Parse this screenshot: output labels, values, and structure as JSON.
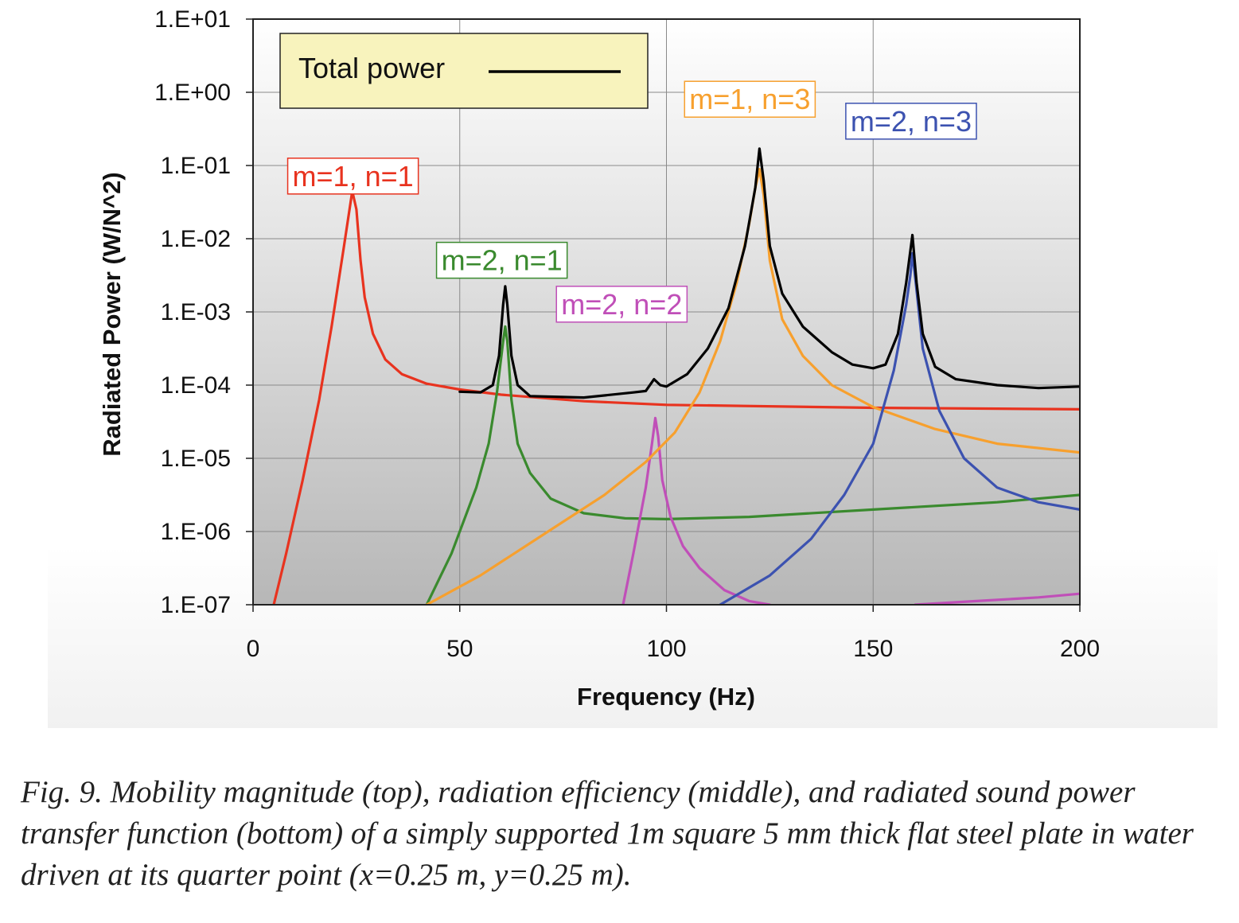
{
  "chart_data": {
    "type": "line",
    "title": "",
    "xlabel": "Frequency (Hz)",
    "ylabel": "Radiated Power (W/N^2)",
    "xlim": [
      0,
      200
    ],
    "ylim_log10": [
      -7,
      1
    ],
    "x_ticks": [
      0,
      50,
      100,
      150,
      200
    ],
    "x_tick_labels": [
      "0",
      "50",
      "100",
      "150",
      "200"
    ],
    "y_ticks_log10": [
      1,
      0,
      -1,
      -2,
      -3,
      -4,
      -5,
      -6,
      -7
    ],
    "y_tick_labels": [
      "1.E+01",
      "1.E+00",
      "1.E-01",
      "1.E-02",
      "1.E-03",
      "1.E-04",
      "1.E-05",
      "1.E-06",
      "1.E-07"
    ],
    "grid": true,
    "legend": {
      "position": "top-left",
      "entries": [
        {
          "label": "Total power",
          "color": "#000000"
        }
      ]
    },
    "series": [
      {
        "name": "m=1, n=1",
        "color": "#e8331f",
        "label_pos": {
          "x": 8,
          "y_log10": -1.15
        },
        "points": [
          [
            5,
            -7
          ],
          [
            8,
            -6.3
          ],
          [
            12,
            -5.3
          ],
          [
            16,
            -4.2
          ],
          [
            19,
            -3.2
          ],
          [
            22,
            -2.1
          ],
          [
            24,
            -1.35
          ],
          [
            25,
            -1.6
          ],
          [
            26,
            -2.3
          ],
          [
            27,
            -2.8
          ],
          [
            29,
            -3.3
          ],
          [
            32,
            -3.65
          ],
          [
            36,
            -3.85
          ],
          [
            42,
            -3.98
          ],
          [
            50,
            -4.06
          ],
          [
            60,
            -4.13
          ],
          [
            80,
            -4.22
          ],
          [
            100,
            -4.27
          ],
          [
            150,
            -4.31
          ],
          [
            200,
            -4.33
          ]
        ]
      },
      {
        "name": "m=2, n=1",
        "color": "#3a8a2e",
        "label_pos": {
          "x": 44,
          "y_log10": -2.3
        },
        "points": [
          [
            42,
            -7
          ],
          [
            48,
            -6.3
          ],
          [
            54,
            -5.4
          ],
          [
            57,
            -4.8
          ],
          [
            59,
            -4.1
          ],
          [
            60.5,
            -3.4
          ],
          [
            61,
            -3.2
          ],
          [
            61.5,
            -3.4
          ],
          [
            62.5,
            -4.2
          ],
          [
            64,
            -4.8
          ],
          [
            67,
            -5.2
          ],
          [
            72,
            -5.55
          ],
          [
            80,
            -5.75
          ],
          [
            90,
            -5.82
          ],
          [
            100,
            -5.83
          ],
          [
            120,
            -5.8
          ],
          [
            150,
            -5.7
          ],
          [
            180,
            -5.6
          ],
          [
            200,
            -5.5
          ]
        ]
      },
      {
        "name": "m=2, n=2",
        "color": "#c04fb8",
        "label_pos": {
          "x": 73,
          "y_log10": -2.9
        },
        "points": [
          [
            89.5,
            -7
          ],
          [
            92,
            -6.3
          ],
          [
            95,
            -5.4
          ],
          [
            96.5,
            -4.8
          ],
          [
            97.3,
            -4.45
          ],
          [
            98,
            -4.7
          ],
          [
            99,
            -5.3
          ],
          [
            101,
            -5.8
          ],
          [
            104,
            -6.2
          ],
          [
            108,
            -6.5
          ],
          [
            114,
            -6.8
          ],
          [
            120,
            -6.95
          ],
          [
            125,
            -7.0
          ]
        ],
        "extra_points": [
          [
            160,
            -7
          ],
          [
            175,
            -6.95
          ],
          [
            190,
            -6.9
          ],
          [
            200,
            -6.85
          ]
        ]
      },
      {
        "name": "m=1, n=3",
        "color": "#f7a02e",
        "label_pos": {
          "x": 104,
          "y_log10": -0.1
        },
        "points": [
          [
            42,
            -7
          ],
          [
            55,
            -6.6
          ],
          [
            70,
            -6.05
          ],
          [
            85,
            -5.5
          ],
          [
            95,
            -5.05
          ],
          [
            102,
            -4.65
          ],
          [
            108,
            -4.1
          ],
          [
            113,
            -3.4
          ],
          [
            117,
            -2.6
          ],
          [
            120,
            -1.8
          ],
          [
            121.5,
            -1.3
          ],
          [
            122.5,
            -1.05
          ],
          [
            123.5,
            -1.4
          ],
          [
            125,
            -2.3
          ],
          [
            128,
            -3.1
          ],
          [
            133,
            -3.6
          ],
          [
            140,
            -4.0
          ],
          [
            150,
            -4.3
          ],
          [
            165,
            -4.6
          ],
          [
            180,
            -4.8
          ],
          [
            200,
            -4.92
          ]
        ]
      },
      {
        "name": "m=2, n=3",
        "color": "#3c52b0",
        "label_pos": {
          "x": 143,
          "y_log10": -0.4
        },
        "points": [
          [
            113,
            -7
          ],
          [
            125,
            -6.6
          ],
          [
            135,
            -6.1
          ],
          [
            143,
            -5.5
          ],
          [
            150,
            -4.8
          ],
          [
            155,
            -3.8
          ],
          [
            158,
            -2.9
          ],
          [
            159,
            -2.5
          ],
          [
            159.5,
            -2.2
          ],
          [
            160.3,
            -2.6
          ],
          [
            162,
            -3.5
          ],
          [
            166,
            -4.35
          ],
          [
            172,
            -5.0
          ],
          [
            180,
            -5.4
          ],
          [
            190,
            -5.6
          ],
          [
            200,
            -5.7
          ]
        ]
      },
      {
        "name": "Total power",
        "color": "#000000",
        "points": [
          [
            50,
            -4.09
          ],
          [
            55,
            -4.1
          ],
          [
            58,
            -4.0
          ],
          [
            59.5,
            -3.6
          ],
          [
            60.5,
            -2.9
          ],
          [
            61,
            -2.65
          ],
          [
            61.5,
            -2.9
          ],
          [
            62.5,
            -3.6
          ],
          [
            64,
            -4.0
          ],
          [
            67,
            -4.15
          ],
          [
            80,
            -4.17
          ],
          [
            92,
            -4.1
          ],
          [
            95,
            -4.08
          ],
          [
            97,
            -3.92
          ],
          [
            98.5,
            -4.0
          ],
          [
            100,
            -4.02
          ],
          [
            105,
            -3.85
          ],
          [
            110,
            -3.5
          ],
          [
            115,
            -2.95
          ],
          [
            119,
            -2.1
          ],
          [
            121.5,
            -1.3
          ],
          [
            122.5,
            -0.77
          ],
          [
            123.5,
            -1.2
          ],
          [
            125,
            -2.1
          ],
          [
            128,
            -2.75
          ],
          [
            133,
            -3.2
          ],
          [
            140,
            -3.55
          ],
          [
            145,
            -3.72
          ],
          [
            150,
            -3.77
          ],
          [
            153,
            -3.72
          ],
          [
            156,
            -3.3
          ],
          [
            158,
            -2.6
          ],
          [
            159.5,
            -1.95
          ],
          [
            160.5,
            -2.6
          ],
          [
            162,
            -3.3
          ],
          [
            165,
            -3.75
          ],
          [
            170,
            -3.92
          ],
          [
            180,
            -4.0
          ],
          [
            190,
            -4.04
          ],
          [
            200,
            -4.02
          ]
        ]
      }
    ]
  },
  "caption": "Fig. 9. Mobility magnitude (top), radiation efficiency (middle), and radiated sound power transfer function (bottom) of a simply supported 1m square 5 mm thick flat steel plate in water driven at its quarter point (x=0.25 m, y=0.25 m)."
}
